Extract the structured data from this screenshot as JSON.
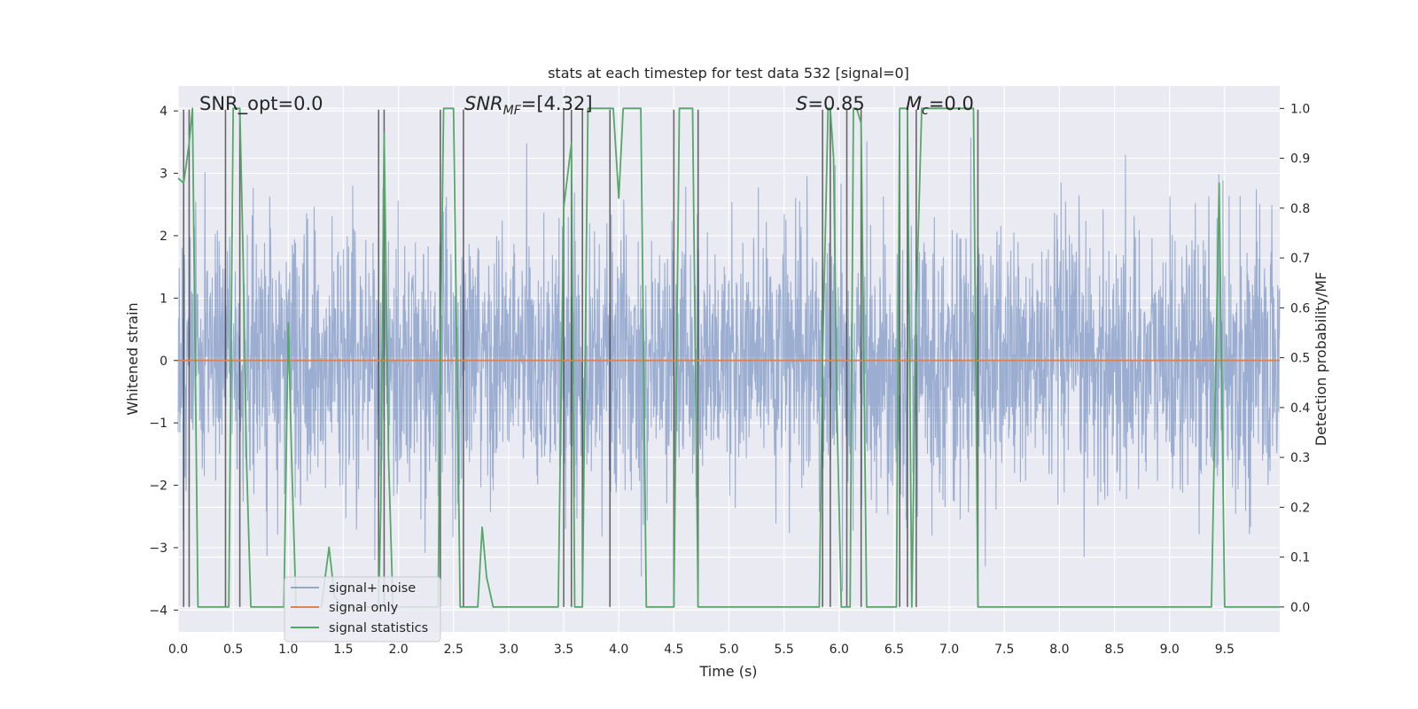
{
  "chart_data": {
    "type": "line",
    "title": "stats at each timestep for test data 532 [signal=0]",
    "xlabel": "Time (s)",
    "ylabel": "Whitened strain",
    "ylabel_right": "Detection probability/MF",
    "xlim": [
      0,
      10
    ],
    "ylim": [
      -4.35,
      4.4
    ],
    "ylim_right": [
      -0.05,
      1.045
    ],
    "x_ticks": [
      "0.0",
      "0.5",
      "1.0",
      "1.5",
      "2.0",
      "2.5",
      "3.0",
      "3.5",
      "4.0",
      "4.5",
      "5.0",
      "5.5",
      "6.0",
      "6.5",
      "7.0",
      "7.5",
      "8.0",
      "8.5",
      "9.0",
      "9.5"
    ],
    "y_ticks": [
      "4",
      "3",
      "2",
      "1",
      "0",
      "−1",
      "−2",
      "−3",
      "−4"
    ],
    "y_ticks_right": [
      "1.0",
      "0.9",
      "0.8",
      "0.7",
      "0.6",
      "0.5",
      "0.4",
      "0.3",
      "0.2",
      "0.1",
      "0.0"
    ],
    "grid": true,
    "legend": {
      "placement": "lower-left",
      "entries": [
        "signal+ noise",
        "signal only",
        "signal statistics"
      ]
    },
    "annotations": {
      "snr_opt": "SNR_opt=0.0",
      "snr_mf_main": "SNR",
      "snr_mf_sub": "MF",
      "snr_mf_value": "=[4.32]",
      "s_main": "S",
      "s_value": "=0.85",
      "mc_main": "M",
      "mc_sub": "c",
      "mc_value": "=0.0"
    },
    "series": [
      {
        "name": "signal+ noise",
        "axis": "left",
        "color": "#4c72b0",
        "description": "dense noise, amplitude mostly within ±2.7, peaks near ±3.7",
        "amplitude_range": [
          -3.7,
          3.7
        ]
      },
      {
        "name": "signal only",
        "axis": "left",
        "color": "#dd8452",
        "x": [
          0,
          10
        ],
        "y": [
          0,
          0
        ]
      },
      {
        "name": "signal statistics",
        "axis": "right",
        "color": "#55a868",
        "x": [
          0.0,
          0.05,
          0.1,
          0.13,
          0.18,
          0.2,
          0.25,
          0.3,
          0.35,
          0.4,
          0.43,
          0.46,
          0.5,
          0.53,
          0.56,
          0.59,
          0.62,
          0.66,
          0.72,
          0.8,
          0.88,
          0.93,
          0.96,
          1.0,
          1.03,
          1.07,
          1.12,
          1.2,
          1.3,
          1.37,
          1.42,
          1.5,
          1.6,
          1.7,
          1.78,
          1.82,
          1.84,
          1.87,
          1.91,
          1.95,
          2.0,
          2.1,
          2.2,
          2.3,
          2.36,
          2.38,
          2.41,
          2.44,
          2.5,
          2.56,
          2.6,
          2.63,
          2.67,
          2.72,
          2.76,
          2.8,
          2.86,
          2.94,
          3.1,
          3.3,
          3.45,
          3.5,
          3.57,
          3.6,
          3.63,
          3.67,
          3.72,
          3.85,
          3.95,
          4.0,
          4.04,
          4.1,
          4.2,
          4.25,
          4.35,
          4.5,
          4.55,
          4.67,
          4.72,
          4.85,
          5.2,
          5.6,
          5.82,
          5.85,
          5.9,
          5.92,
          5.95,
          5.98,
          6.02,
          6.07,
          6.1,
          6.13,
          6.16,
          6.2,
          6.25,
          6.4,
          6.52,
          6.55,
          6.62,
          6.66,
          6.7,
          6.75,
          6.8,
          7.0,
          7.22,
          7.26,
          7.3,
          7.6,
          8.0,
          8.5,
          9.0,
          9.2,
          9.38,
          9.45,
          9.5,
          9.55,
          9.8,
          10.0
        ],
        "y": [
          0.86,
          0.85,
          0.93,
          1.0,
          0.0,
          0.0,
          0.0,
          0.0,
          0.0,
          0.0,
          0.0,
          0.0,
          1.0,
          1.0,
          1.0,
          0.7,
          0.3,
          0.0,
          0.0,
          0.0,
          0.0,
          0.0,
          0.0,
          0.57,
          0.3,
          0.0,
          0.0,
          0.0,
          0.0,
          0.12,
          0.02,
          0.0,
          0.0,
          0.0,
          0.0,
          0.0,
          0.2,
          0.95,
          0.3,
          0.0,
          0.0,
          0.0,
          0.0,
          0.0,
          0.0,
          0.5,
          1.0,
          1.0,
          1.0,
          0.0,
          0.0,
          0.0,
          0.0,
          0.0,
          0.16,
          0.06,
          0.0,
          0.0,
          0.0,
          0.0,
          0.0,
          0.8,
          0.93,
          0.0,
          0.0,
          0.0,
          1.0,
          1.0,
          1.0,
          0.82,
          1.0,
          1.0,
          1.0,
          0.0,
          0.0,
          0.0,
          1.0,
          1.0,
          0.0,
          0.0,
          0.0,
          0.0,
          0.0,
          0.5,
          1.0,
          1.0,
          0.9,
          0.4,
          0.0,
          0.0,
          0.0,
          1.0,
          1.0,
          0.97,
          0.0,
          0.0,
          0.0,
          1.0,
          1.0,
          0.0,
          0.6,
          1.0,
          1.0,
          1.0,
          1.0,
          0.0,
          0.0,
          0.0,
          0.0,
          0.0,
          0.0,
          0.0,
          0.0,
          0.85,
          0.0,
          0.0,
          0.0,
          0.0
        ]
      }
    ],
    "vertical_markers": [
      0.05,
      0.1,
      0.43,
      0.56,
      1.82,
      1.87,
      2.38,
      2.59,
      3.5,
      3.57,
      3.67,
      3.92,
      4.5,
      4.72,
      5.85,
      5.92,
      6.07,
      6.2,
      6.55,
      6.62,
      6.7,
      7.26
    ]
  }
}
